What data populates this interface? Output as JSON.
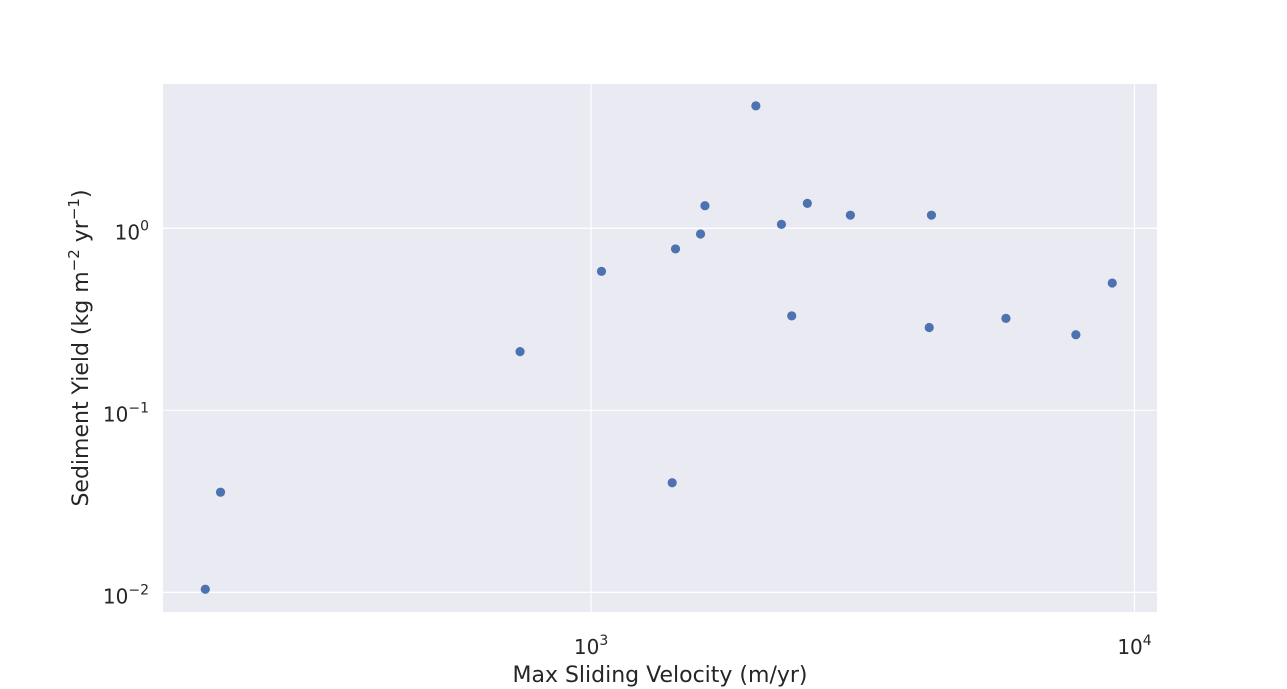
{
  "chart_data": {
    "type": "scatter",
    "xlabel": "Max Sliding Velocity (m/yr)",
    "ylabel": {
      "base": "Sediment Yield (kg m",
      "sup1": "−2",
      "mid": " yr",
      "sup2": "−1",
      "end": ")"
    },
    "xscale": "log",
    "yscale": "log",
    "xlim": [
      163,
      11000
    ],
    "ylim": [
      0.0078,
      6.2
    ],
    "grid": true,
    "background": "#EAEAF2",
    "grid_color": "#FFFFFF",
    "marker_color": "#4C72B0",
    "x_ticks": [
      {
        "value": 1000,
        "base": "10",
        "exp": "3"
      },
      {
        "value": 10000,
        "base": "10",
        "exp": "4"
      }
    ],
    "y_ticks": [
      {
        "value": 0.01,
        "base": "10",
        "exp": "−2"
      },
      {
        "value": 0.1,
        "base": "10",
        "exp": "−1"
      },
      {
        "value": 1,
        "base": "10",
        "exp": "0"
      }
    ],
    "points": [
      {
        "x": 195,
        "y": 0.0104
      },
      {
        "x": 208,
        "y": 0.0355
      },
      {
        "x": 740,
        "y": 0.21
      },
      {
        "x": 1045,
        "y": 0.58
      },
      {
        "x": 1410,
        "y": 0.04
      },
      {
        "x": 1430,
        "y": 0.77
      },
      {
        "x": 1590,
        "y": 0.93
      },
      {
        "x": 1620,
        "y": 1.33
      },
      {
        "x": 2010,
        "y": 4.7
      },
      {
        "x": 2240,
        "y": 1.05
      },
      {
        "x": 2340,
        "y": 0.33
      },
      {
        "x": 2500,
        "y": 1.37
      },
      {
        "x": 3000,
        "y": 1.18
      },
      {
        "x": 4190,
        "y": 0.285
      },
      {
        "x": 4230,
        "y": 1.18
      },
      {
        "x": 5800,
        "y": 0.32
      },
      {
        "x": 7800,
        "y": 0.26
      },
      {
        "x": 9100,
        "y": 0.5
      }
    ]
  }
}
